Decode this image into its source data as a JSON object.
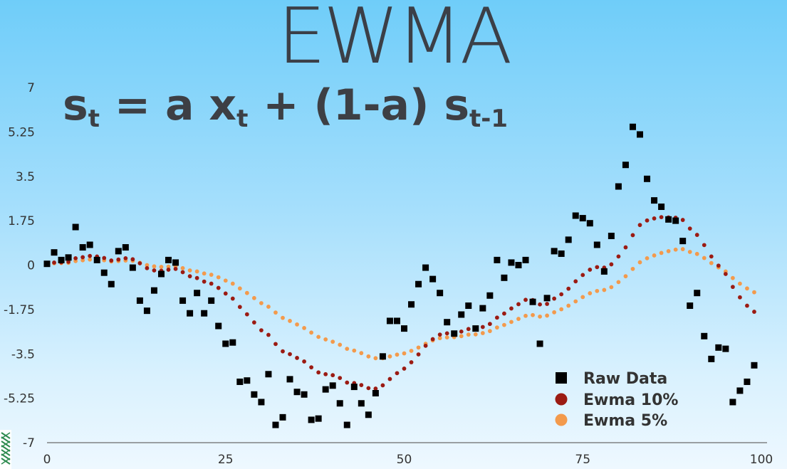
{
  "slide": {
    "title": "EWMA",
    "formula": {
      "s": "s",
      "sub_t": "t",
      "eq": " = a x",
      "sub_t2": "t",
      "mid": " + (1-a) s",
      "sub_t1": "t-1"
    }
  },
  "colors": {
    "raw": "#000000",
    "ewma10": "#9b1b13",
    "ewma5": "#f39a4c",
    "axis": "#6b6b6b"
  },
  "chart_data": {
    "type": "scatter",
    "title": "",
    "xlabel": "",
    "ylabel": "",
    "xlim": [
      0,
      100
    ],
    "ylim": [
      -7,
      7
    ],
    "x_ticks": [
      0,
      25,
      50,
      75,
      100
    ],
    "x_tick_labels": [
      "0",
      "25",
      "50",
      "75",
      "100"
    ],
    "y_ticks": [
      7,
      5.25,
      3.5,
      1.75,
      0,
      -1.75,
      -3.5,
      -5.25,
      -7
    ],
    "y_tick_labels": [
      "7",
      "5.25",
      "3.5",
      "1.75",
      "0",
      "-1.75",
      "-3.5",
      "-5.25",
      "-7"
    ],
    "grid": false,
    "legend_position": "bottom-right",
    "series": [
      {
        "name": "Raw Data",
        "marker": "square",
        "values": [
          0.05,
          0.5,
          0.2,
          0.3,
          1.5,
          0.7,
          0.8,
          0.2,
          -0.3,
          -0.75,
          0.55,
          0.7,
          -0.1,
          -1.4,
          -1.8,
          -1.0,
          -0.35,
          0.2,
          0.1,
          -1.4,
          -1.9,
          -1.1,
          -1.9,
          -1.4,
          -2.4,
          -3.1,
          -3.05,
          -4.6,
          -4.55,
          -5.1,
          -5.4,
          -4.3,
          -6.3,
          -6.0,
          -4.5,
          -5.0,
          -5.1,
          -6.1,
          -6.05,
          -4.9,
          -4.75,
          -5.45,
          -6.3,
          -4.8,
          -5.45,
          -5.9,
          -5.05,
          -3.6,
          -2.2,
          -2.2,
          -2.5,
          -1.55,
          -0.75,
          -0.1,
          -0.55,
          -1.1,
          -2.25,
          -2.7,
          -1.95,
          -1.6,
          -2.5,
          -1.7,
          -1.2,
          0.2,
          -0.5,
          0.1,
          0.0,
          0.2,
          -1.45,
          -3.1,
          -1.3,
          0.55,
          0.45,
          1.0,
          1.95,
          1.85,
          1.65,
          0.8,
          -0.25,
          1.15,
          3.1,
          3.95,
          5.45,
          5.15,
          3.4,
          2.55,
          2.3,
          1.8,
          1.75,
          0.95,
          -1.6,
          -1.1,
          -2.8,
          -3.7,
          -3.25,
          -3.3,
          -5.4,
          -4.95,
          -4.6,
          -3.95
        ]
      },
      {
        "name": "Ewma 10%",
        "marker": "circle",
        "values": [
          0.05,
          0.1,
          0.11,
          0.13,
          0.27,
          0.31,
          0.36,
          0.34,
          0.28,
          0.18,
          0.22,
          0.27,
          0.23,
          0.07,
          -0.12,
          -0.21,
          -0.22,
          -0.18,
          -0.15,
          -0.28,
          -0.44,
          -0.51,
          -0.65,
          -0.73,
          -0.9,
          -1.12,
          -1.32,
          -1.65,
          -1.94,
          -2.26,
          -2.57,
          -2.75,
          -3.11,
          -3.4,
          -3.51,
          -3.66,
          -3.8,
          -4.03,
          -4.23,
          -4.3,
          -4.34,
          -4.45,
          -4.63,
          -4.65,
          -4.73,
          -4.85,
          -4.87,
          -4.74,
          -4.49,
          -4.26,
          -4.08,
          -3.83,
          -3.52,
          -3.18,
          -2.92,
          -2.74,
          -2.69,
          -2.69,
          -2.62,
          -2.52,
          -2.52,
          -2.44,
          -2.32,
          -2.07,
          -1.91,
          -1.71,
          -1.54,
          -1.37,
          -1.38,
          -1.55,
          -1.53,
          -1.32,
          -1.15,
          -0.93,
          -0.64,
          -0.39,
          -0.18,
          -0.08,
          -0.1,
          0.03,
          0.34,
          0.7,
          1.18,
          1.58,
          1.76,
          1.84,
          1.89,
          1.88,
          1.87,
          1.78,
          1.44,
          1.19,
          0.79,
          0.34,
          -0.02,
          -0.35,
          -0.86,
          -1.27,
          -1.6,
          -1.84
        ]
      },
      {
        "name": "Ewma 5%",
        "marker": "circle",
        "values": [
          0.05,
          0.07,
          0.08,
          0.09,
          0.16,
          0.19,
          0.22,
          0.22,
          0.19,
          0.14,
          0.16,
          0.18,
          0.17,
          0.09,
          0.0,
          -0.05,
          -0.07,
          -0.06,
          -0.05,
          -0.12,
          -0.21,
          -0.25,
          -0.33,
          -0.38,
          -0.48,
          -0.61,
          -0.73,
          -0.92,
          -1.1,
          -1.3,
          -1.5,
          -1.64,
          -1.87,
          -2.08,
          -2.2,
          -2.34,
          -2.48,
          -2.66,
          -2.83,
          -2.93,
          -3.02,
          -3.14,
          -3.3,
          -3.37,
          -3.47,
          -3.6,
          -3.67,
          -3.67,
          -3.6,
          -3.53,
          -3.48,
          -3.38,
          -3.25,
          -3.1,
          -2.97,
          -2.88,
          -2.85,
          -2.84,
          -2.8,
          -2.74,
          -2.73,
          -2.68,
          -2.6,
          -2.46,
          -2.36,
          -2.24,
          -2.12,
          -2.0,
          -1.97,
          -2.03,
          -1.99,
          -1.86,
          -1.74,
          -1.6,
          -1.43,
          -1.26,
          -1.11,
          -1.02,
          -0.98,
          -0.87,
          -0.67,
          -0.44,
          -0.15,
          0.11,
          0.27,
          0.38,
          0.48,
          0.55,
          0.61,
          0.63,
          0.52,
          0.44,
          0.28,
          0.08,
          -0.09,
          -0.25,
          -0.51,
          -0.73,
          -0.92,
          -1.07
        ]
      }
    ]
  }
}
